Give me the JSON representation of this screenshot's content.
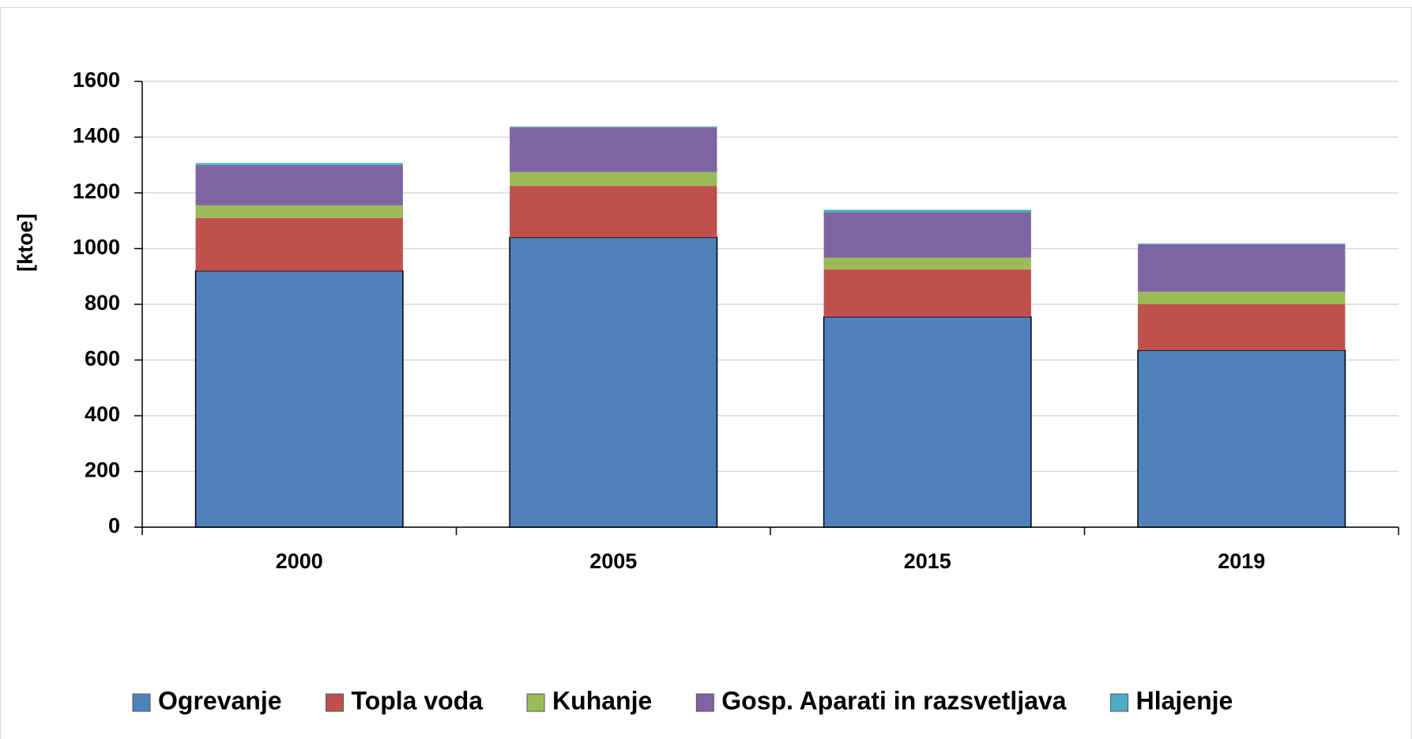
{
  "chart_data": {
    "type": "stacked_bar",
    "y_label": "[ktoe]",
    "categories": [
      "2000",
      "2005",
      "2015",
      "2019"
    ],
    "series": [
      {
        "name": "Ogrevanje",
        "color": "#4f81bd",
        "values": [
          920,
          1040,
          755,
          635
        ]
      },
      {
        "name": "Topla voda",
        "color": "#c0504d",
        "values": [
          190,
          185,
          170,
          165
        ]
      },
      {
        "name": "Kuhanje",
        "color": "#9bbb59",
        "values": [
          45,
          50,
          42,
          45
        ]
      },
      {
        "name": "Gosp. Aparati in razsvetljava",
        "color": "#8064a2",
        "values": [
          145,
          160,
          162,
          170
        ]
      },
      {
        "name": "Hlajenje",
        "color": "#4bacc6",
        "values": [
          7,
          3,
          10,
          3
        ]
      }
    ],
    "ylim": [
      0,
      1600
    ],
    "yticks": [
      0,
      200,
      400,
      600,
      800,
      1000,
      1200,
      1400,
      1600
    ],
    "grid": true,
    "legend": "bottom"
  }
}
